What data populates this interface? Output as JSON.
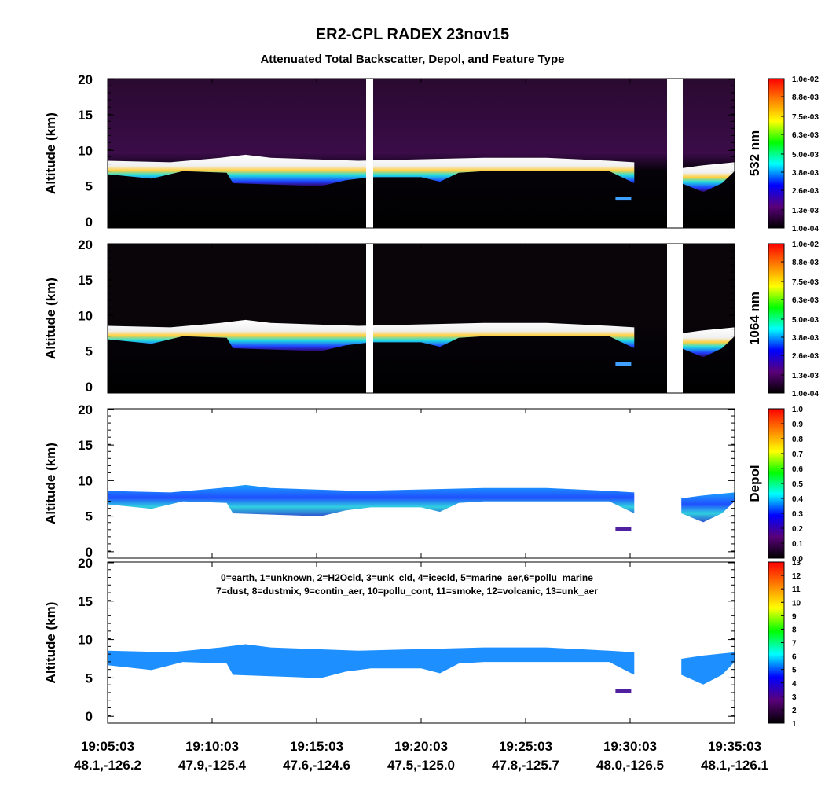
{
  "figure": {
    "title": "ER2-CPL RADEX 23nov15",
    "subtitle": "Attenuated Total Backscatter, Depol, and Feature Type",
    "x_labels": [
      {
        "time": "19:05:03",
        "location": "48.1,-126.2"
      },
      {
        "time": "19:10:03",
        "location": "47.9,-125.4"
      },
      {
        "time": "19:15:03",
        "location": "47.6,-124.6"
      },
      {
        "time": "19:20:03",
        "location": "47.5,-125.0"
      },
      {
        "time": "19:25:03",
        "location": "47.8,-125.7"
      },
      {
        "time": "19:30:03",
        "location": "48.0,-126.5"
      },
      {
        "time": "19:35:03",
        "location": "48.1,-126.1"
      }
    ]
  },
  "chart_data": [
    {
      "type": "backscatter",
      "ylabel": "Altitude (km)",
      "ylim": [
        -0.9,
        20.1
      ],
      "yticks": [
        0,
        5,
        10,
        15,
        20
      ],
      "colorbar": {
        "label": "532 nm",
        "lim": [
          0.0001,
          0.01
        ],
        "colors": [
          "#000000",
          "#5a007a",
          "#0000ff",
          "#00ffff",
          "#00ff00",
          "#ffff00",
          "#ff8000",
          "#ff0000"
        ],
        "ticks": [
          {
            "value": 0.01,
            "label": "1.0e-02"
          },
          {
            "value": 0.0088,
            "label": "8.8e-03"
          },
          {
            "value": 0.0075,
            "label": "7.5e-03"
          },
          {
            "value": 0.0063,
            "label": "6.3e-03"
          },
          {
            "value": 0.005,
            "label": "5.0e-03"
          },
          {
            "value": 0.0038,
            "label": "3.8e-03"
          },
          {
            "value": 0.0026,
            "label": "2.6e-03"
          },
          {
            "value": 0.0013,
            "label": "1.3e-03"
          },
          {
            "value": 0.0001,
            "label": "1.0e-04"
          }
        ]
      }
    },
    {
      "type": "backscatter",
      "ylabel": "Altitude (km)",
      "ylim": [
        -0.9,
        20.1
      ],
      "yticks": [
        0,
        5,
        10,
        15,
        20
      ],
      "colorbar": {
        "label": "1064 nm",
        "lim": [
          0.0001,
          0.01
        ],
        "colors": [
          "#000000",
          "#5a007a",
          "#0000ff",
          "#00ffff",
          "#00ff00",
          "#ffff00",
          "#ff8000",
          "#ff0000"
        ],
        "ticks": [
          {
            "value": 0.01,
            "label": "1.0e-02"
          },
          {
            "value": 0.0088,
            "label": "8.8e-03"
          },
          {
            "value": 0.0075,
            "label": "7.5e-03"
          },
          {
            "value": 0.0063,
            "label": "6.3e-03"
          },
          {
            "value": 0.005,
            "label": "5.0e-03"
          },
          {
            "value": 0.0038,
            "label": "3.8e-03"
          },
          {
            "value": 0.0026,
            "label": "2.6e-03"
          },
          {
            "value": 0.0013,
            "label": "1.3e-03"
          },
          {
            "value": 0.0001,
            "label": "1.0e-04"
          }
        ]
      }
    },
    {
      "type": "depol",
      "ylabel": "Altitude (km)",
      "ylim": [
        -0.9,
        20.1
      ],
      "yticks": [
        0,
        5,
        10,
        15,
        20
      ],
      "colorbar": {
        "label": "Depol",
        "lim": [
          0,
          1
        ],
        "colors": [
          "#000000",
          "#5a007a",
          "#0000ff",
          "#00ffff",
          "#00ff00",
          "#ffff00",
          "#ff8000",
          "#ff0000"
        ],
        "ticks": [
          {
            "value": 1,
            "label": "1.0"
          },
          0.9,
          0.8,
          0.7,
          0.6,
          0.5,
          0.4,
          0.3,
          0.2,
          0.1,
          {
            "value": 0,
            "label": "0.0"
          }
        ]
      }
    },
    {
      "type": "feature",
      "ylabel": "Altitude (km)",
      "ylim": [
        -0.9,
        20.1
      ],
      "yticks": [
        0,
        5,
        10,
        15,
        20
      ],
      "annotations": [
        "0=earth, 1=unknown, 2=H2Ocld, 3=unk_cld, 4=icecld, 5=marine_aer,6=pollu_marine",
        "7=dust, 8=dustmix, 9=contin_aer, 10=pollu_cont, 11=smoke, 12=volcanic, 13=unk_aer"
      ],
      "colorbar": {
        "lim": [
          1,
          13
        ],
        "colors": [
          "#000000",
          "#5a007a",
          "#0000ff",
          "#00ffff",
          "#00ff00",
          "#ffff00",
          "#ff8000",
          "#ff0000"
        ],
        "ticks": [
          13,
          12,
          11,
          10,
          9,
          8,
          7,
          6,
          5,
          4,
          3,
          2,
          1
        ]
      }
    }
  ]
}
